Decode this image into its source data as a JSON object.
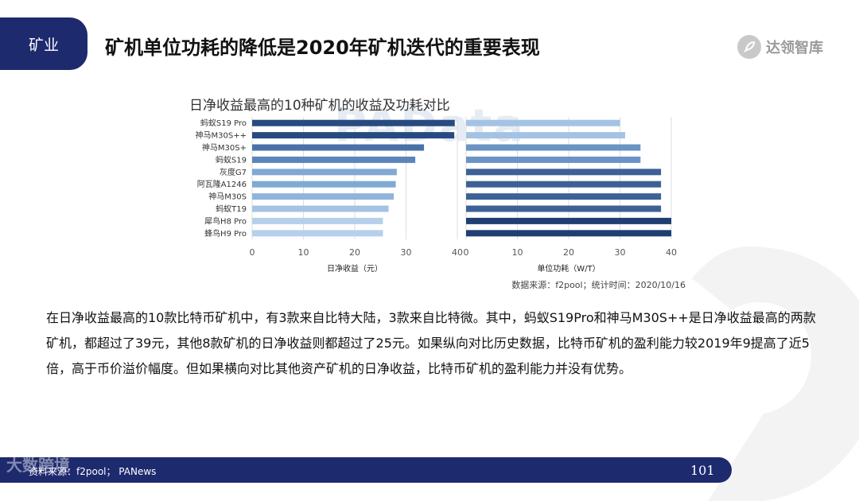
{
  "header": {
    "tag": "矿业",
    "title": "矿机单位功耗的降低是2020年矿机迭代的重要表现"
  },
  "brand": {
    "name": "达领智库",
    "logo_icon": "rocket-icon"
  },
  "chart_title": "日净收益最高的10种矿机的收益及功耗对比",
  "watermark": "PAData",
  "chart_source": "数据来源：f2pool；统计时间：2020/10/16",
  "chart_data": [
    {
      "type": "bar",
      "orientation": "horizontal",
      "categories": [
        "蚂蚁S19 Pro",
        "神马M30S++",
        "神马M30S+",
        "蚂蚁S19",
        "灰度G7",
        "阿瓦隆A1246",
        "神马M30S",
        "蚂蚁T19",
        "犀鸟H8 Pro",
        "蜂鸟H9 Pro"
      ],
      "values": [
        39.5,
        39.4,
        33.5,
        31.8,
        28.2,
        28.0,
        27.6,
        26.6,
        25.5,
        25.5
      ],
      "xlabel": "日净收益（元）",
      "xlim": [
        0,
        40
      ],
      "ticks": [
        0,
        10,
        20,
        30,
        40
      ],
      "grid": true,
      "colors": [
        "#274a80",
        "#274a80",
        "#4a72a8",
        "#5b85ba",
        "#80a9d4",
        "#80a9d4",
        "#90b4da",
        "#a4c3e4",
        "#b6d0ec",
        "#b6d0ec"
      ]
    },
    {
      "type": "bar",
      "orientation": "horizontal",
      "categories": [
        "蚂蚁S19 Pro",
        "神马M30S++",
        "神马M30S+",
        "蚂蚁S19",
        "灰度G7",
        "阿瓦隆A1246",
        "神马M30S",
        "蚂蚁T19",
        "犀鸟H8 Pro",
        "蜂鸟H9 Pro"
      ],
      "values": [
        30,
        31,
        34,
        34,
        38,
        38,
        38,
        38,
        40,
        40
      ],
      "xlabel": "单位功耗（W/T）",
      "xlim": [
        0,
        40
      ],
      "ticks": [
        0,
        10,
        20,
        30,
        40
      ],
      "grid": true,
      "colors": [
        "#a4c3e4",
        "#a4c3e4",
        "#6b93c4",
        "#6b93c4",
        "#3d6196",
        "#3d6196",
        "#3d6196",
        "#3d6196",
        "#1f3f73",
        "#1f3f73"
      ]
    }
  ],
  "body_text": "在日净收益最高的10款比特币矿机中，有3款来自比特大陆，3款来自比特微。其中，蚂蚁S19Pro和神马M30S++是日净收益最高的两款矿机，都超过了39元，其他8款矿机的日净收益则都超过了25元。如果纵向对比历史数据，比特币矿机的盈利能力较2019年9提高了近5倍，高于币价溢价幅度。但如果横向对比其他资产矿机的日净收益，比特币矿机的盈利能力并没有优势。",
  "footer": {
    "source": "资料来源：f2pool； PANews",
    "watermark": "大数跨境",
    "page_number": "101"
  }
}
